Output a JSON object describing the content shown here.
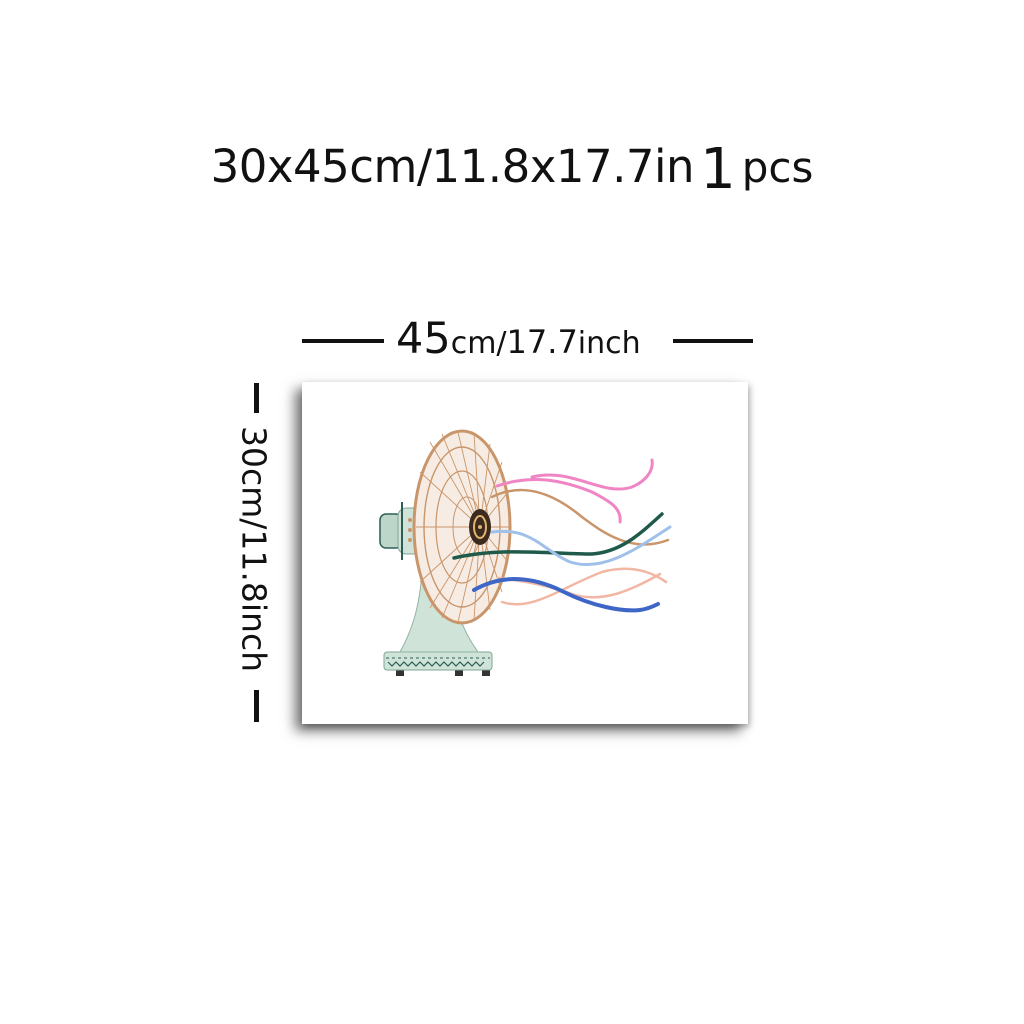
{
  "title": {
    "size_text": "30x45cm/11.8x17.7in",
    "quantity": "1",
    "quantity_unit": "pcs"
  },
  "dimensions": {
    "width_number": "45",
    "width_unit": "cm/",
    "width_inches": "17.7",
    "width_inches_unit": "inch",
    "height_label": "30cm/11.8inch"
  },
  "artwork": {
    "subject": "vintage-desk-fan",
    "colors": {
      "fan_body": "#cfe3d8",
      "fan_cage": "#c9956a",
      "hub": "#3b2a1e",
      "ribbon_pink": "#ef85c4",
      "ribbon_green": "#1f5a4a",
      "ribbon_tan": "#c9956a",
      "ribbon_lightblue": "#9fc0ea",
      "ribbon_peach": "#f2b7a4",
      "ribbon_blue": "#3d66c7"
    }
  }
}
